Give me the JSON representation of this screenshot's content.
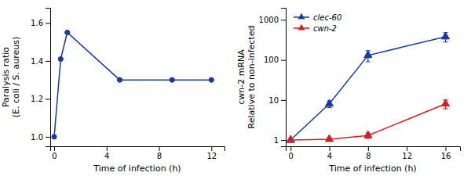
{
  "chart_data": [
    {
      "type": "line",
      "xlabel": "Time of infection (h)",
      "ylabel": "Paralysis ratio\n(E. coli / S. aureus)",
      "x": [
        0,
        0.5,
        1,
        5,
        9,
        12
      ],
      "values": [
        1.0,
        1.41,
        1.55,
        1.3,
        1.3,
        1.3
      ],
      "color": "#1a3a9e",
      "marker": "circle",
      "xlim": [
        -0.3,
        13
      ],
      "ylim": [
        0.95,
        1.68
      ],
      "xticks": [
        0,
        4,
        8,
        12
      ],
      "yticks": [
        {
          "value": 1.0,
          "label": "1.0"
        },
        1.2,
        1.4,
        1.6
      ]
    },
    {
      "type": "line",
      "xlabel": "Time of infection (h)",
      "ylabel": "cwn-2 mRNA\nRelative to non-infected",
      "x": [
        0,
        4,
        8,
        16
      ],
      "series": [
        {
          "name": "clec-60",
          "color": "#1a3a9e",
          "marker": "triangle",
          "values": [
            1,
            8,
            130,
            380
          ],
          "errors": [
            0,
            1.5,
            40,
            100
          ]
        },
        {
          "name": "cwn-2",
          "color": "#cc2222",
          "marker": "triangle",
          "values": [
            1,
            1.05,
            1.3,
            8
          ],
          "errors": [
            0,
            0.1,
            0.2,
            2.0
          ]
        }
      ],
      "log": "y",
      "legend": "upper left",
      "xlim": [
        -0.5,
        17.5
      ],
      "ylim": [
        0.7,
        2000
      ],
      "xticks": [
        0,
        4,
        8,
        12,
        16
      ],
      "yticks": [
        1,
        10,
        100,
        1000
      ]
    }
  ]
}
